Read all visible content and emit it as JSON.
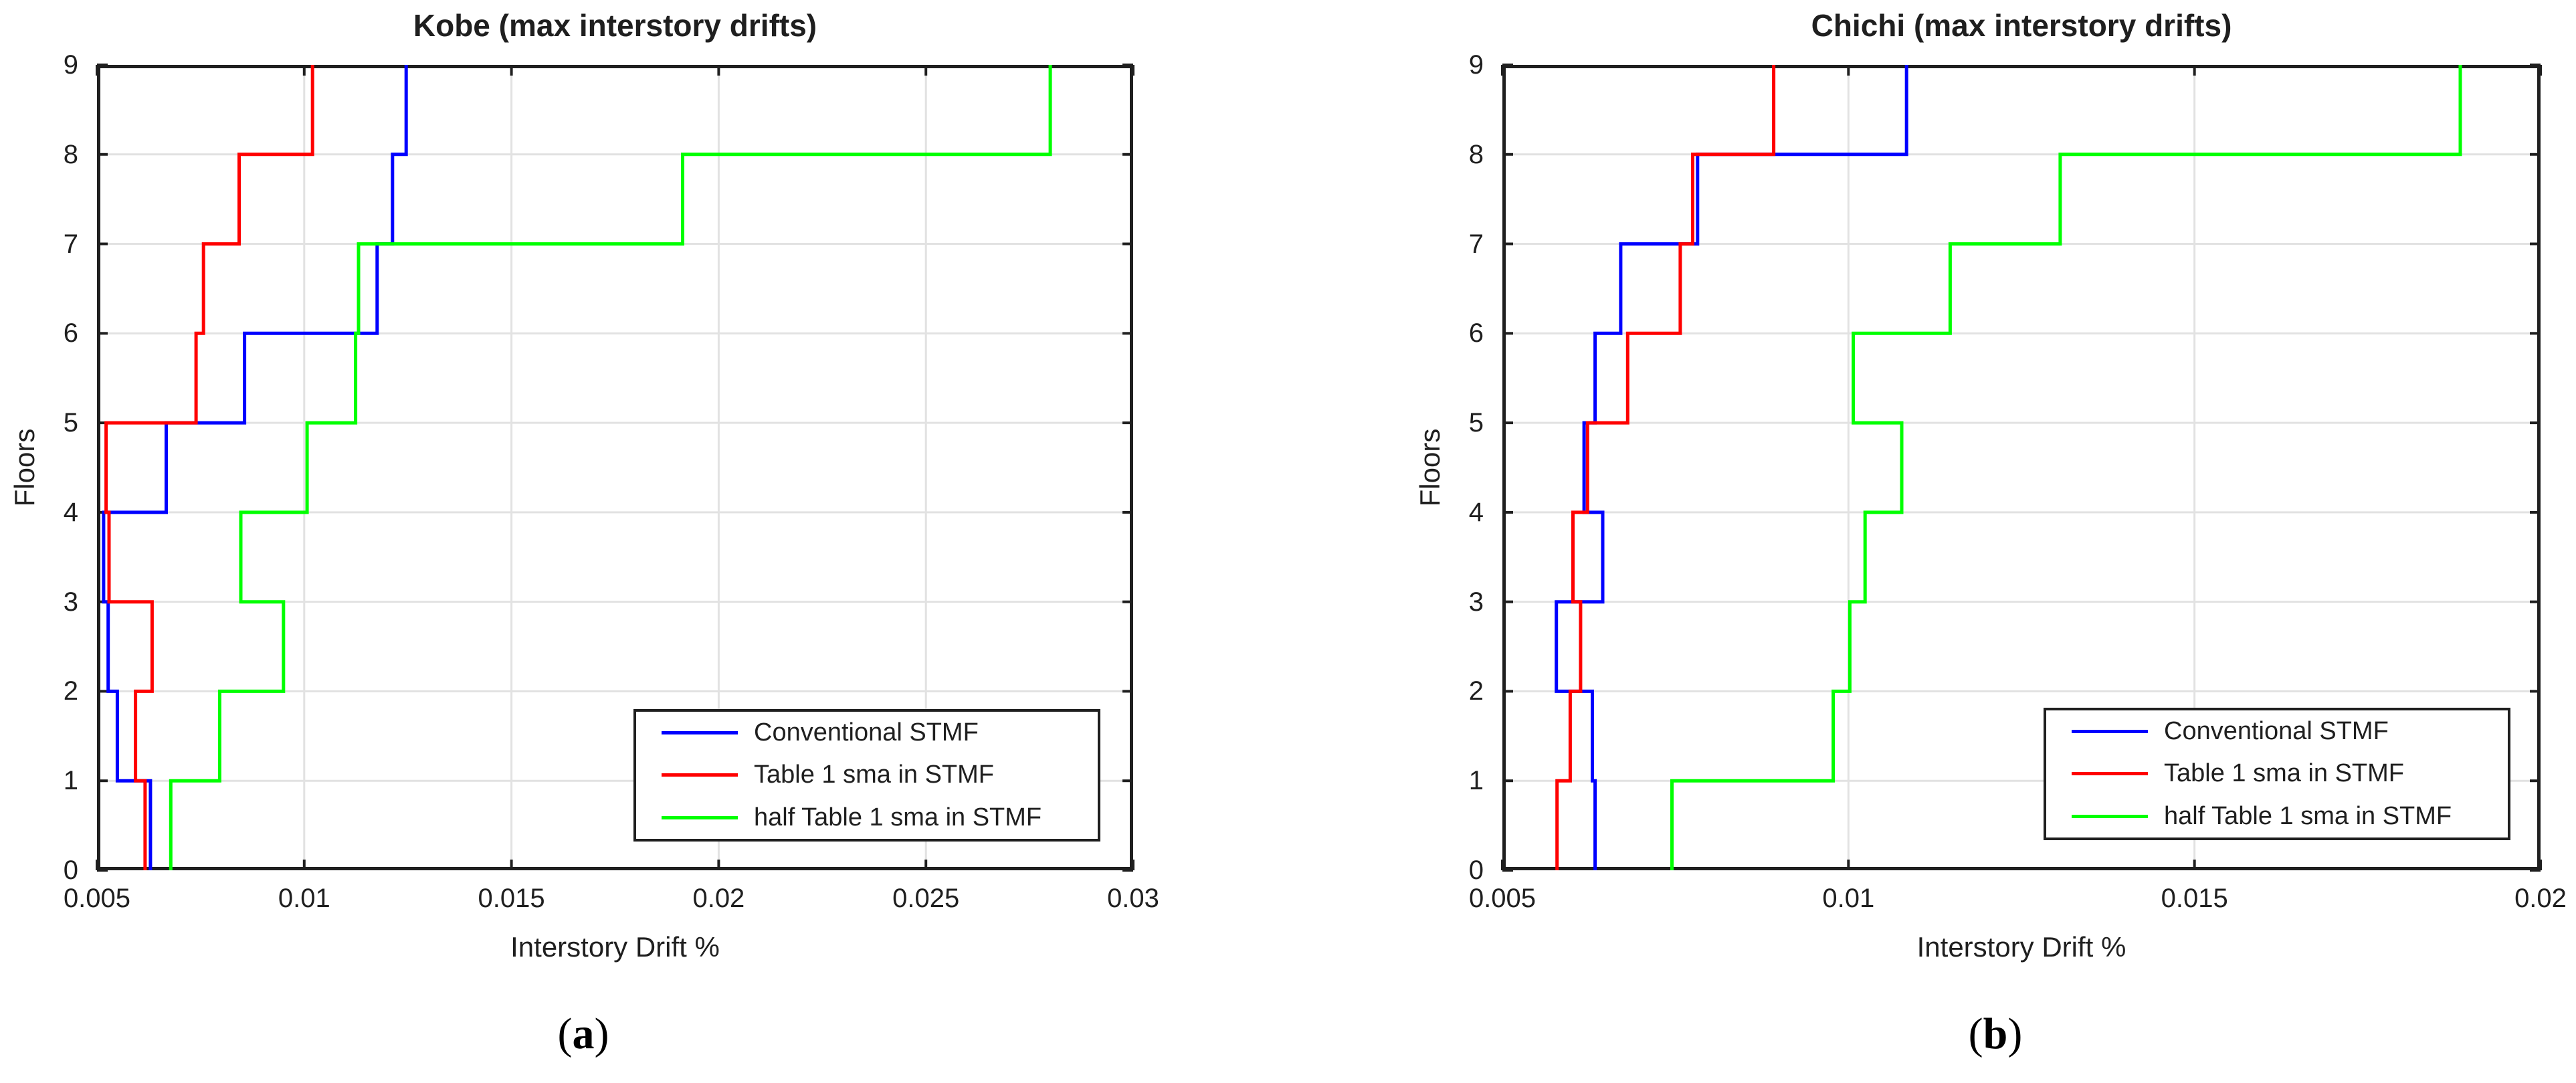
{
  "figure": {
    "background": "#ffffff",
    "axis_color": "#1f1f1f",
    "grid_color": "#e2e2e2",
    "series_colors": {
      "blue": "#0000ff",
      "red": "#ff0000",
      "green": "#00ff00"
    }
  },
  "chart_data": [
    {
      "type": "line",
      "style": "stairs",
      "title": "Kobe (max interstory drifts)",
      "xlabel": "Interstory Drift %",
      "ylabel": "Floors",
      "caption": "(a)",
      "caption_parts": {
        "open": "(",
        "letter": "a",
        "close": ")"
      },
      "xlim": [
        0.005,
        0.03
      ],
      "ylim": [
        0,
        9
      ],
      "xticks": [
        0.005,
        0.01,
        0.015,
        0.02,
        0.025,
        0.03
      ],
      "xtick_labels": [
        "0.005",
        "0.01",
        "0.015",
        "0.02",
        "0.025",
        "0.03"
      ],
      "yticks": [
        0,
        1,
        2,
        3,
        4,
        5,
        6,
        7,
        8,
        9
      ],
      "ytick_labels": [
        "0",
        "1",
        "2",
        "3",
        "4",
        "5",
        "6",
        "7",
        "8",
        "9"
      ],
      "grid": true,
      "legend": {
        "position": "lower right",
        "entries": [
          "Conventional STMF",
          "Table 1 sma in STMF",
          "half Table 1 sma in STMF"
        ]
      },
      "floors": [
        0,
        1,
        2,
        3,
        4,
        5,
        6,
        7,
        8,
        9
      ],
      "series": [
        {
          "name": "Conventional STMF",
          "color": "#0000ff",
          "story_drifts": [
            0.00629,
            0.00549,
            0.00527,
            0.00516,
            0.00667,
            0.00856,
            0.01176,
            0.01213,
            0.01246
          ]
        },
        {
          "name": "Table 1 sma in STMF",
          "color": "#ff0000",
          "story_drifts": [
            0.00616,
            0.00593,
            0.00633,
            0.00529,
            0.00522,
            0.00739,
            0.00757,
            0.00843,
            0.0102
          ]
        },
        {
          "name": "half Table 1 sma in STMF",
          "color": "#00ff00",
          "story_drifts": [
            0.00678,
            0.00796,
            0.0095,
            0.00847,
            0.01007,
            0.01124,
            0.01131,
            0.01913,
            0.028
          ]
        }
      ],
      "note": "story_drifts[i] is the drift plotted between floor i and floor i+1 (stairs rise at each floor line)"
    },
    {
      "type": "line",
      "style": "stairs",
      "title": "Chichi (max interstory drifts)",
      "xlabel": "Interstory Drift %",
      "ylabel": "Floors",
      "caption": "(b)",
      "caption_parts": {
        "open": "(",
        "letter": "b",
        "close": ")"
      },
      "xlim": [
        0.005,
        0.02
      ],
      "ylim": [
        0,
        9
      ],
      "xticks": [
        0.005,
        0.01,
        0.015,
        0.02
      ],
      "xtick_labels": [
        "0.005",
        "0.01",
        "0.015",
        "0.02"
      ],
      "yticks": [
        0,
        1,
        2,
        3,
        4,
        5,
        6,
        7,
        8,
        9
      ],
      "ytick_labels": [
        "0",
        "1",
        "2",
        "3",
        "4",
        "5",
        "6",
        "7",
        "8",
        "9"
      ],
      "grid": true,
      "legend": {
        "position": "lower right",
        "entries": [
          "Conventional STMF",
          "Table 1 sma in STMF",
          "half Table 1 sma in STMF"
        ]
      },
      "floors": [
        0,
        1,
        2,
        3,
        4,
        5,
        6,
        7,
        8,
        9
      ],
      "series": [
        {
          "name": "Conventional STMF",
          "color": "#0000ff",
          "story_drifts": [
            0.00634,
            0.0063,
            0.00578,
            0.00645,
            0.00618,
            0.00634,
            0.00671,
            0.00782,
            0.01084
          ]
        },
        {
          "name": "Table 1 sma in STMF",
          "color": "#ff0000",
          "story_drifts": [
            0.00579,
            0.00598,
            0.00613,
            0.00602,
            0.00623,
            0.00681,
            0.00757,
            0.00775,
            0.00892
          ]
        },
        {
          "name": "half Table 1 sma in STMF",
          "color": "#00ff00",
          "story_drifts": [
            0.00745,
            0.00978,
            0.01002,
            0.01024,
            0.01077,
            0.01007,
            0.01147,
            0.01306,
            0.01884
          ]
        }
      ],
      "note": "story_drifts[i] is the drift plotted between floor i and floor i+1 (stairs rise at each floor line)"
    }
  ]
}
